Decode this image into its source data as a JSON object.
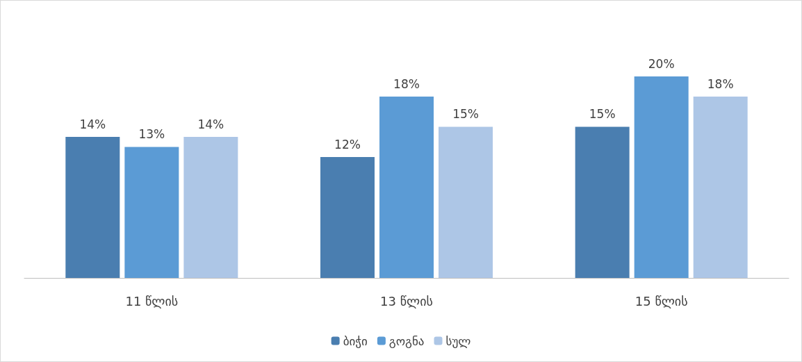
{
  "chart_data": {
    "type": "bar",
    "categories": [
      "11 წლის",
      "13 წლის",
      "15 წლის"
    ],
    "series": [
      {
        "name": "ბიჭი",
        "color": "#4a7eb0",
        "values": [
          14,
          12,
          15
        ],
        "value_labels": [
          "14%",
          "12%",
          "15%"
        ]
      },
      {
        "name": "გოგნა",
        "color": "#5b9bd5",
        "values": [
          13,
          18,
          20
        ],
        "value_labels": [
          "13%",
          "18%",
          "20%"
        ]
      },
      {
        "name": "სულ",
        "color": "#adc6e6",
        "values": [
          14,
          15,
          18
        ],
        "value_labels": [
          "14%",
          "15%",
          "18%"
        ]
      }
    ],
    "legend": "bottom"
  }
}
